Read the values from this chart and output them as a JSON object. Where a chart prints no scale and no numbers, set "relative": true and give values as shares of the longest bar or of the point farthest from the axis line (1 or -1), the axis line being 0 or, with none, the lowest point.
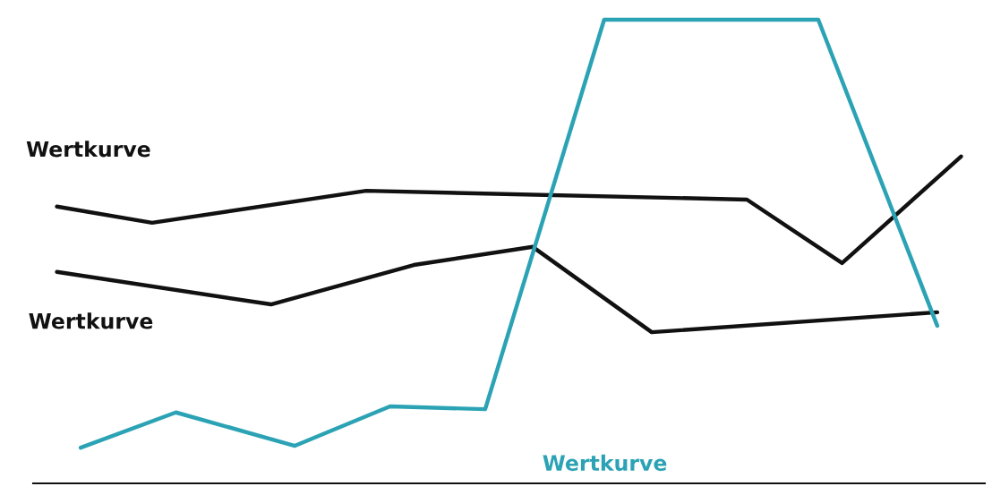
{
  "chart_data": {
    "type": "line",
    "relative": true,
    "grid": false,
    "legend": false,
    "marker": "none",
    "line_style": "solid",
    "categories": [
      null,
      null,
      null,
      null,
      null,
      null,
      null,
      null,
      null,
      null,
      null,
      null,
      null,
      null,
      null,
      null,
      null,
      null,
      null,
      null,
      null,
      null,
      null,
      null,
      null,
      null,
      null,
      null,
      null,
      null,
      null,
      null,
      null,
      null,
      null,
      null,
      null,
      null,
      null,
      null,
      null
    ],
    "series": [
      {
        "name": "Wertkurve",
        "color": "#111111",
        "values": [
          null,
          0.597,
          null,
          null,
          null,
          0.562,
          null,
          null,
          null,
          null,
          null,
          null,
          null,
          null,
          0.631,
          null,
          null,
          null,
          null,
          null,
          null,
          null,
          null,
          null,
          null,
          null,
          null,
          null,
          null,
          null,
          0.612,
          null,
          null,
          null,
          0.475,
          null,
          null,
          null,
          null,
          0.705,
          null
        ]
      },
      {
        "name": "Wertkurve",
        "color": "#111111",
        "values": [
          null,
          0.456,
          null,
          null,
          null,
          null,
          null,
          null,
          null,
          null,
          0.386,
          null,
          null,
          null,
          null,
          null,
          0.471,
          null,
          null,
          null,
          null,
          0.51,
          null,
          null,
          null,
          null,
          0.326,
          null,
          null,
          null,
          null,
          null,
          null,
          null,
          null,
          null,
          null,
          null,
          0.369,
          null,
          null
        ]
      },
      {
        "name": "Wertkurve",
        "color": "#2ba3b5",
        "values": [
          null,
          null,
          0.077,
          null,
          null,
          null,
          0.153,
          null,
          null,
          null,
          null,
          0.081,
          null,
          null,
          null,
          0.166,
          null,
          null,
          null,
          0.16,
          null,
          null,
          null,
          null,
          1,
          null,
          null,
          null,
          null,
          null,
          null,
          null,
          null,
          1,
          null,
          null,
          null,
          null,
          0.34,
          null,
          null
        ]
      }
    ]
  }
}
